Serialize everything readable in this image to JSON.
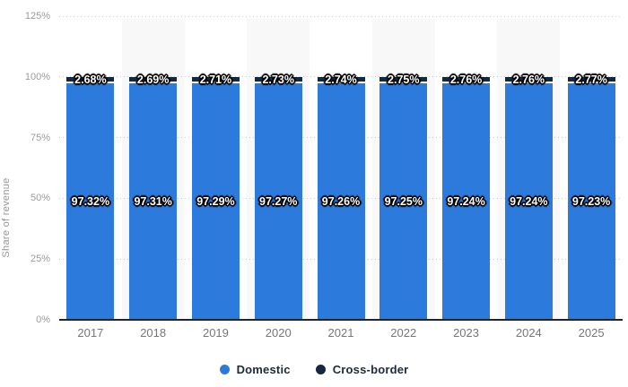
{
  "chart_data": {
    "type": "bar",
    "stacked": true,
    "title": "",
    "ylabel": "Share of revenue",
    "categories": [
      "2017",
      "2018",
      "2019",
      "2020",
      "2021",
      "2022",
      "2023",
      "2024",
      "2025"
    ],
    "series": [
      {
        "name": "Domestic",
        "color": "#2d7add",
        "values": [
          97.32,
          97.31,
          97.29,
          97.27,
          97.26,
          97.25,
          97.24,
          97.24,
          97.23
        ],
        "labels": [
          "97.32%",
          "97.31%",
          "97.29%",
          "97.27%",
          "97.26%",
          "97.25%",
          "97.24%",
          "97.24%",
          "97.23%"
        ]
      },
      {
        "name": "Cross-border",
        "color": "#15293d",
        "values": [
          2.68,
          2.69,
          2.71,
          2.73,
          2.74,
          2.75,
          2.76,
          2.76,
          2.77
        ],
        "labels": [
          "2.68%",
          "2.69%",
          "2.71%",
          "2.73%",
          "2.74%",
          "2.75%",
          "2.76%",
          "2.76%",
          "2.77%"
        ]
      }
    ],
    "ylim": [
      0,
      125
    ],
    "yticks": [
      "0%",
      "25%",
      "50%",
      "75%",
      "100%",
      "125%"
    ],
    "grid": "horizontal-dotted",
    "legend_position": "bottom",
    "highlighted_columns": [
      "2018",
      "2020",
      "2022",
      "2024"
    ]
  },
  "colors": {
    "domestic": "#2d7add",
    "cross_border": "#15293d",
    "column_highlight": "#f8f8f8",
    "gridline": "#c9c9c9",
    "axis_line": "#1a2634",
    "tick_text": "#9b9b9b",
    "year_text": "#767676",
    "legend_text": "#1b2a3c",
    "value_text": "#ffffff",
    "value_outline": "#000000"
  }
}
